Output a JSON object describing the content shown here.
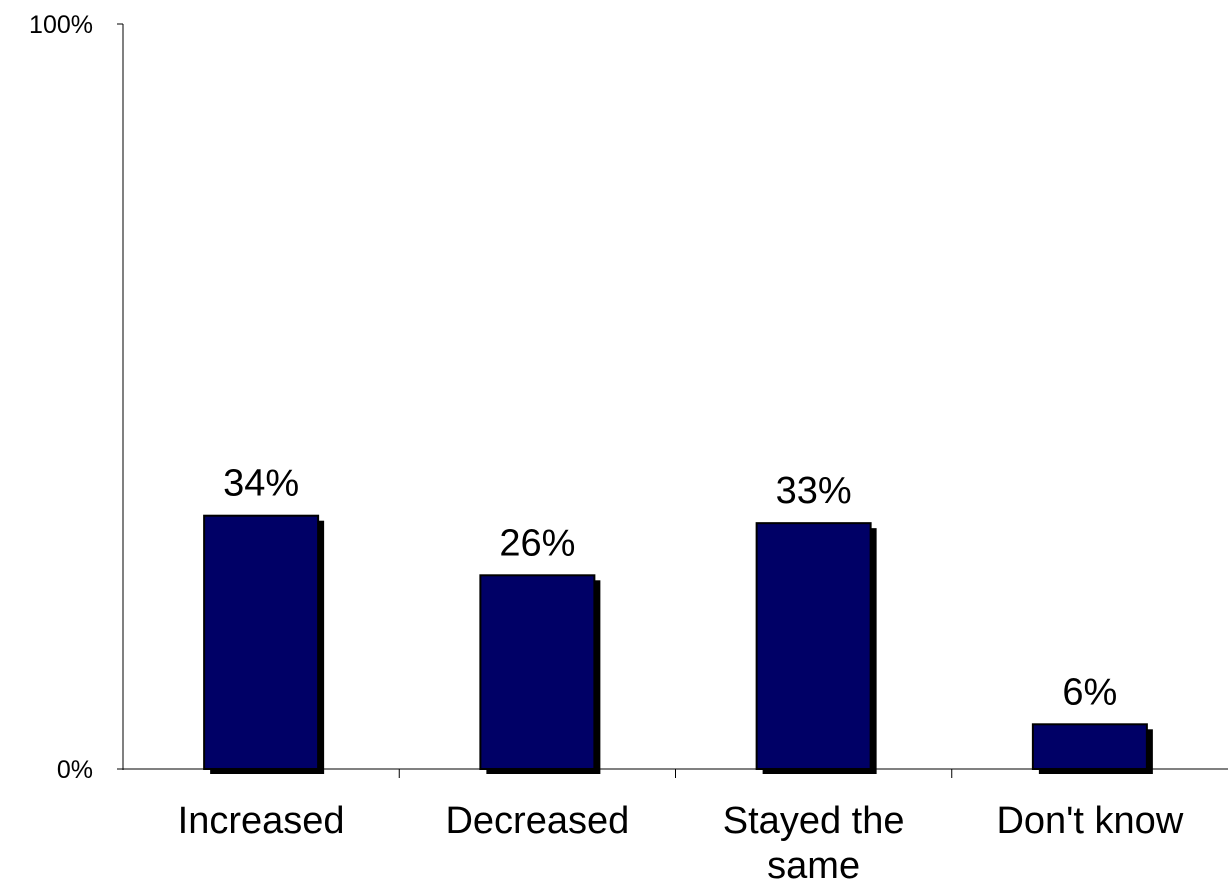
{
  "chart_data": {
    "type": "bar",
    "categories": [
      "Increased",
      "Decreased",
      "Stayed the same",
      "Don't know"
    ],
    "category_label_lines": [
      [
        "Increased"
      ],
      [
        "Decreased"
      ],
      [
        "Stayed the",
        "same"
      ],
      [
        "Don't know"
      ]
    ],
    "values": [
      34,
      26,
      33,
      6
    ],
    "data_labels": [
      "34%",
      "26%",
      "33%",
      "6%"
    ],
    "ylim": [
      0,
      100
    ],
    "yticks": [
      "0%",
      "100%"
    ],
    "title": "",
    "xlabel": "",
    "ylabel": "",
    "grid": false,
    "legend": "none",
    "bar_color": "#000066",
    "shadow_color": "#000000",
    "bar_style": "3d-shadow"
  }
}
